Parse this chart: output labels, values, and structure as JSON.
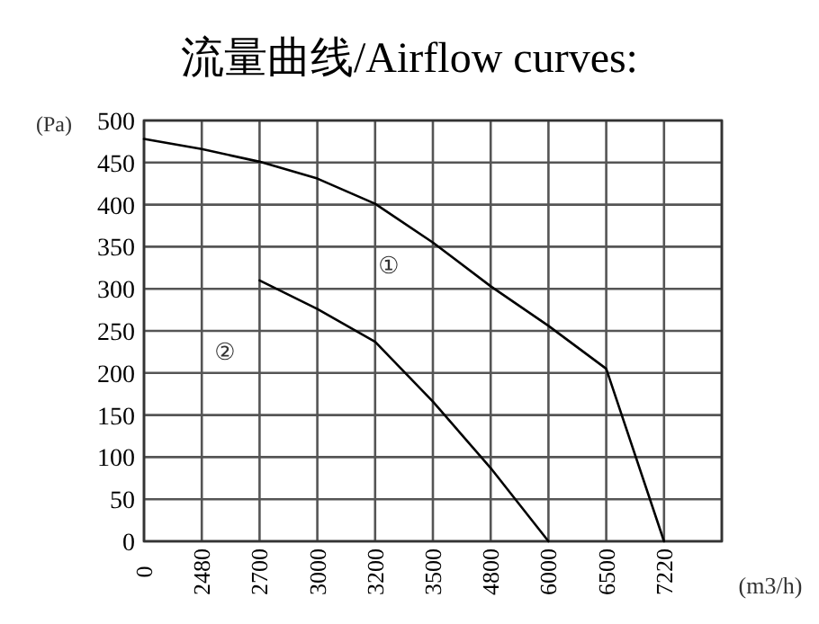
{
  "chart_data": {
    "type": "line",
    "title": "流量曲线/Airflow curves:",
    "xlabel": "(m3/h)",
    "ylabel": "(Pa)",
    "categories": [
      "0",
      "2480",
      "2700",
      "3000",
      "3200",
      "3500",
      "4800",
      "6000",
      "6500",
      "7220",
      null
    ],
    "series": [
      {
        "color": "#000000",
        "values": [
          478,
          466,
          451,
          431,
          401,
          355,
          303,
          256,
          205,
          0,
          null
        ]
      },
      {
        "color": "#000000",
        "values": [
          null,
          null,
          310,
          276,
          237,
          166,
          87,
          0,
          null,
          null,
          null
        ]
      }
    ],
    "ylim": [
      0,
      500
    ],
    "yticks": [
      0,
      50,
      100,
      150,
      200,
      250,
      300,
      350,
      400,
      450,
      500
    ],
    "grid": true,
    "marker": "none",
    "line_style": "solid",
    "annotations": [
      "①",
      "②"
    ]
  }
}
